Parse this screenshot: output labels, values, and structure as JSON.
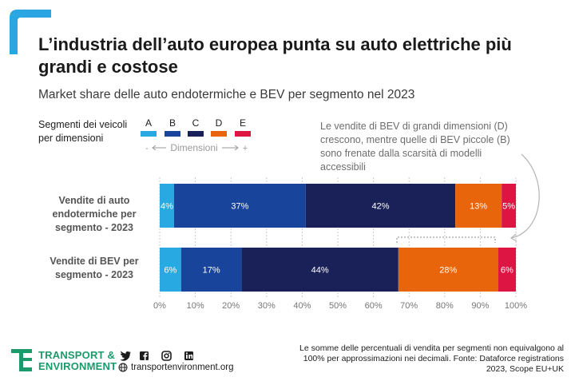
{
  "title": "L’industria dell’auto europea punta su auto elettriche più grandi e costose",
  "subtitle": "Market share delle auto endotermiche e BEV per segmento nel 2023",
  "legend": {
    "heading": "Segmenti dei veicoli per dimensioni",
    "scale_minus": "-",
    "scale_text": "Dimensioni",
    "scale_plus": "+"
  },
  "callout": "Le vendite di BEV di grandi dimensioni (D) crescono, mentre quelle di BEV piccole (B) sono frenate dalla scarsità di modelli accessibili",
  "footer": {
    "brand_line1": "TRANSPORT &",
    "brand_line2": "ENVIRONMENT",
    "website": "transportenvironment.org",
    "note": "Le somme delle percentuali di vendita per segmenti non equivalgono al 100% per approssimazioni nei decimali. Fonte: Dataforce registrations 2023, Scope EU+UK"
  },
  "colors": {
    "accent": "#2aa7e2",
    "brand_green": "#1b9a6c",
    "A": "#29a9e1",
    "B": "#19449b",
    "C": "#1a2158",
    "D": "#e8650c",
    "E": "#dd1542"
  },
  "chart_data": {
    "type": "bar",
    "orientation": "horizontal",
    "stacked": true,
    "title": "Market share delle auto endotermiche e BEV per segmento nel 2023",
    "categories": [
      "Vendite di auto endotermiche per segmento - 2023",
      "Vendite di BEV per segmento - 2023"
    ],
    "series": [
      {
        "name": "A",
        "values": [
          4,
          6
        ]
      },
      {
        "name": "B",
        "values": [
          37,
          17
        ]
      },
      {
        "name": "C",
        "values": [
          42,
          44
        ]
      },
      {
        "name": "D",
        "values": [
          13,
          28
        ]
      },
      {
        "name": "E",
        "values": [
          5,
          6
        ]
      }
    ],
    "xlim": [
      0,
      100
    ],
    "ticks": [
      "0%",
      "10%",
      "20%",
      "30%",
      "40%",
      "50%",
      "60%",
      "70%",
      "80%",
      "90%",
      "100%"
    ],
    "grid": true
  }
}
